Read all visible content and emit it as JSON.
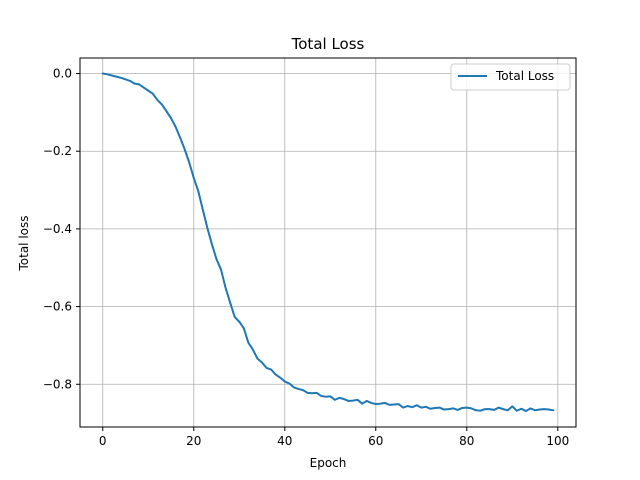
{
  "chart_data": {
    "type": "line",
    "title": "Total Loss",
    "xlabel": "Epoch",
    "ylabel": "Total loss",
    "xlim": [
      -5,
      104
    ],
    "ylim": [
      -0.91,
      0.04
    ],
    "xticks": [
      0,
      20,
      40,
      60,
      80,
      100
    ],
    "yticks": [
      0.0,
      -0.2,
      -0.4,
      -0.6,
      -0.8
    ],
    "xtick_labels": [
      "0",
      "20",
      "40",
      "60",
      "80",
      "100"
    ],
    "ytick_labels": [
      "0.0",
      "−0.2",
      "−0.4",
      "−0.6",
      "−0.8"
    ],
    "grid": true,
    "legend": {
      "placement": "top-right",
      "entries": [
        "Total Loss"
      ]
    },
    "series": [
      {
        "name": "Total Loss",
        "color": "#1f77b4",
        "x": [
          0,
          1,
          2,
          3,
          4,
          5,
          6,
          7,
          8,
          9,
          10,
          11,
          12,
          13,
          14,
          15,
          16,
          17,
          18,
          19,
          20,
          21,
          22,
          23,
          24,
          25,
          26,
          27,
          28,
          29,
          30,
          31,
          32,
          33,
          34,
          35,
          36,
          37,
          38,
          39,
          40,
          41,
          42,
          43,
          44,
          45,
          46,
          47,
          48,
          49,
          50,
          51,
          52,
          53,
          54,
          55,
          56,
          57,
          58,
          59,
          60,
          61,
          62,
          63,
          64,
          65,
          66,
          67,
          68,
          69,
          70,
          71,
          72,
          73,
          74,
          75,
          76,
          77,
          78,
          79,
          80,
          81,
          82,
          83,
          84,
          85,
          86,
          87,
          88,
          89,
          90,
          91,
          92,
          93,
          94,
          95,
          96,
          97,
          98,
          99
        ],
        "values": [
          0.0,
          -0.002,
          -0.005,
          -0.008,
          -0.011,
          -0.015,
          -0.019,
          -0.026,
          -0.028,
          -0.036,
          -0.044,
          -0.052,
          -0.068,
          -0.08,
          -0.097,
          -0.115,
          -0.137,
          -0.165,
          -0.195,
          -0.229,
          -0.269,
          -0.303,
          -0.351,
          -0.398,
          -0.44,
          -0.478,
          -0.505,
          -0.552,
          -0.59,
          -0.627,
          -0.639,
          -0.656,
          -0.693,
          -0.711,
          -0.734,
          -0.744,
          -0.758,
          -0.762,
          -0.775,
          -0.783,
          -0.793,
          -0.798,
          -0.808,
          -0.812,
          -0.815,
          -0.822,
          -0.823,
          -0.822,
          -0.83,
          -0.832,
          -0.831,
          -0.84,
          -0.835,
          -0.838,
          -0.843,
          -0.842,
          -0.84,
          -0.85,
          -0.843,
          -0.848,
          -0.851,
          -0.85,
          -0.848,
          -0.853,
          -0.852,
          -0.851,
          -0.86,
          -0.856,
          -0.859,
          -0.854,
          -0.86,
          -0.858,
          -0.863,
          -0.861,
          -0.86,
          -0.865,
          -0.864,
          -0.862,
          -0.866,
          -0.861,
          -0.86,
          -0.862,
          -0.867,
          -0.868,
          -0.864,
          -0.864,
          -0.866,
          -0.86,
          -0.864,
          -0.867,
          -0.857,
          -0.868,
          -0.863,
          -0.869,
          -0.862,
          -0.867,
          -0.865,
          -0.864,
          -0.865,
          -0.867
        ]
      }
    ]
  }
}
